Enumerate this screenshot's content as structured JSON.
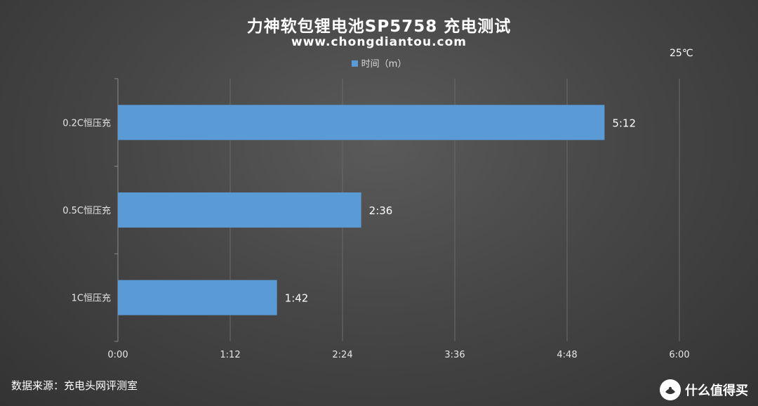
{
  "header": {
    "title": "力神软包锂电池SP5758 充电测试",
    "subtitle": "www.chongdiantou.com",
    "temperature": "25℃"
  },
  "footer": {
    "source": "数据来源：充电头网评测室",
    "brand": "什么值得买"
  },
  "colors": {
    "bar": "#5b9bd5",
    "grid": "#6a6a6a",
    "text": "#ffffff"
  },
  "chart_data": {
    "type": "bar",
    "orientation": "horizontal",
    "categories": [
      "0.2C恒压充",
      "0.5C恒压充",
      "1C恒压充"
    ],
    "series": [
      {
        "name": "时间（m）",
        "values": [
          312,
          156,
          102
        ],
        "labels": [
          "5:12",
          "2:36",
          "1:42"
        ]
      }
    ],
    "xlim": [
      0,
      360
    ],
    "xticks": [
      0,
      72,
      144,
      216,
      288,
      360
    ],
    "xtick_labels": [
      "0:00",
      "1:12",
      "2:24",
      "3:36",
      "4:48",
      "6:00"
    ],
    "grid": true,
    "legend": "top-center"
  }
}
